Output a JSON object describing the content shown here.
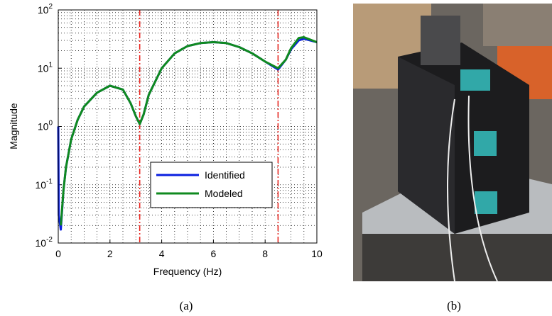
{
  "chart_data": {
    "type": "line",
    "log_y": true,
    "grid": true,
    "xlabel": "Frequency (Hz)",
    "ylabel": "Magnitude",
    "xlim": [
      0,
      10
    ],
    "xticks": [
      0,
      2,
      4,
      6,
      8,
      10
    ],
    "ylim": [
      0.01,
      100
    ],
    "yticks": [
      {
        "value": 0.01,
        "label": "10",
        "exponent": "-2"
      },
      {
        "value": 0.1,
        "label": "10",
        "exponent": "-1"
      },
      {
        "value": 1,
        "label": "10",
        "exponent": "0"
      },
      {
        "value": 10,
        "label": "10",
        "exponent": "1"
      },
      {
        "value": 100,
        "label": "10",
        "exponent": "2"
      }
    ],
    "vlines": [
      3.15,
      8.5
    ],
    "vline_color": "#e8251f",
    "legend": "lower-center",
    "series": [
      {
        "name": "Identified",
        "color": "#0a1fe0",
        "x": [
          0,
          0.02,
          0.1,
          0.2,
          0.3,
          0.5,
          0.75,
          1.0,
          1.5,
          2.0,
          2.5,
          2.8,
          3.0,
          3.15,
          3.3,
          3.5,
          4.0,
          4.5,
          5.0,
          5.5,
          6.0,
          6.5,
          7.0,
          7.5,
          8.0,
          8.5,
          8.8,
          9.0,
          9.3,
          9.5,
          10.0
        ],
        "values": [
          1,
          0.03,
          0.017,
          0.08,
          0.2,
          0.6,
          1.3,
          2.2,
          3.8,
          5.0,
          4.3,
          2.5,
          1.5,
          1.1,
          1.6,
          3.5,
          10,
          18,
          24,
          27,
          28,
          27,
          23,
          18,
          13,
          9.5,
          14,
          21,
          30,
          32,
          28
        ]
      },
      {
        "name": "Modeled",
        "color": "#0f8a1f",
        "x": [
          0.1,
          0.2,
          0.3,
          0.5,
          0.75,
          1.0,
          1.5,
          2.0,
          2.5,
          2.8,
          3.0,
          3.15,
          3.3,
          3.5,
          4.0,
          4.5,
          5.0,
          5.5,
          6.0,
          6.5,
          7.0,
          7.5,
          8.0,
          8.5,
          8.8,
          9.0,
          9.3,
          9.5,
          10.0
        ],
        "values": [
          0.02,
          0.08,
          0.2,
          0.6,
          1.3,
          2.2,
          3.8,
          5.0,
          4.3,
          2.5,
          1.5,
          1.1,
          1.6,
          3.5,
          10,
          18,
          24,
          27,
          28,
          27,
          23,
          18,
          13,
          10,
          14,
          22,
          33,
          34,
          28
        ]
      }
    ]
  },
  "captions": [
    "(a)",
    "(b)"
  ]
}
